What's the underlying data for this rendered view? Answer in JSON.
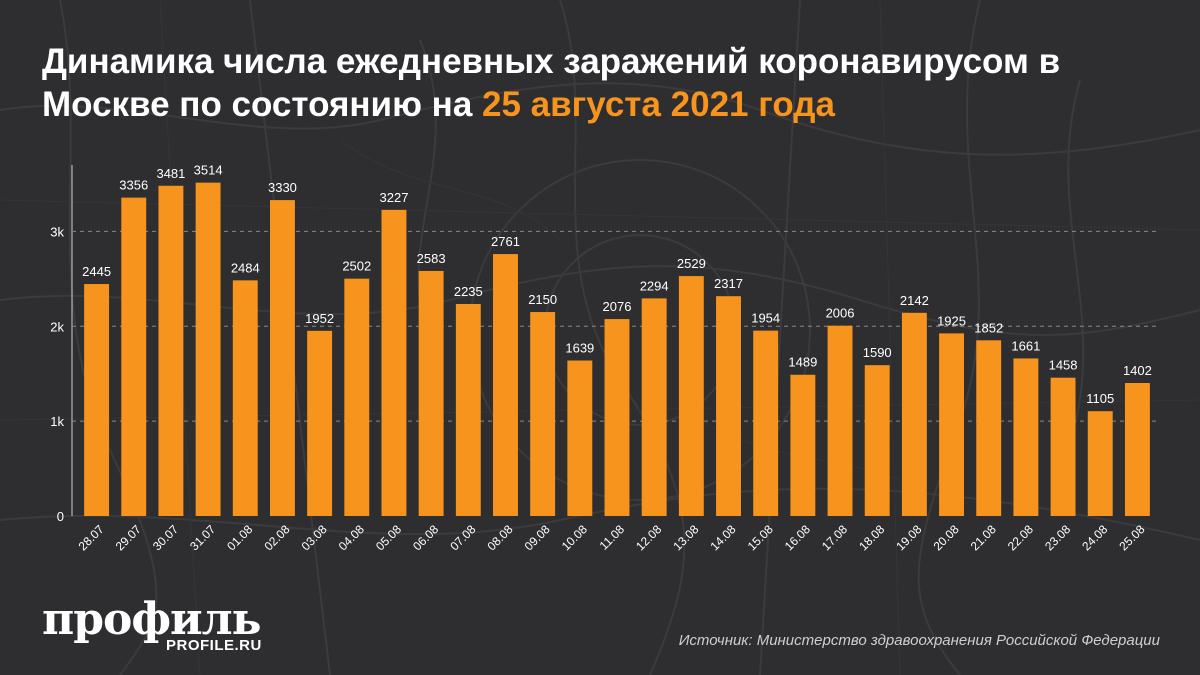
{
  "header": {
    "title_main": "Динамика числа ежедневных заражений коронавирусом в Москве по состоянию на",
    "title_highlight": "25 августа 2021 года"
  },
  "colors": {
    "background": "#2e2e30",
    "bar": "#f7941d",
    "highlight": "#f7941d",
    "text": "#ffffff",
    "grid": "#8a8a8a"
  },
  "chart_data": {
    "type": "bar",
    "categories": [
      "28.07",
      "29.07",
      "30.07",
      "31.07",
      "01.08",
      "02.08",
      "03.08",
      "04.08",
      "05.08",
      "06.08",
      "07.08",
      "08.08",
      "09.08",
      "10.08",
      "11.08",
      "12.08",
      "13.08",
      "14.08",
      "15.08",
      "16.08",
      "17.08",
      "18.08",
      "19.08",
      "20.08",
      "21.08",
      "22.08",
      "23.08",
      "24.08",
      "25.08"
    ],
    "values": [
      2445,
      3356,
      3481,
      3514,
      2484,
      3330,
      1952,
      2502,
      3227,
      2583,
      2235,
      2761,
      2150,
      1639,
      2076,
      2294,
      2529,
      2317,
      1954,
      1489,
      2006,
      1590,
      2142,
      1925,
      1852,
      1661,
      1458,
      1105,
      1402
    ],
    "yticks": [
      0,
      1000,
      2000,
      3000
    ],
    "ytick_labels": [
      "0",
      "1k",
      "2k",
      "3k"
    ],
    "ylim": [
      0,
      3700
    ],
    "grid": true,
    "data_labels": true
  },
  "footer": {
    "logo": "профиль",
    "logo_sub": "PROFILE.RU",
    "source": "Источник: Министерство здравоохранения Российской Федерации"
  }
}
